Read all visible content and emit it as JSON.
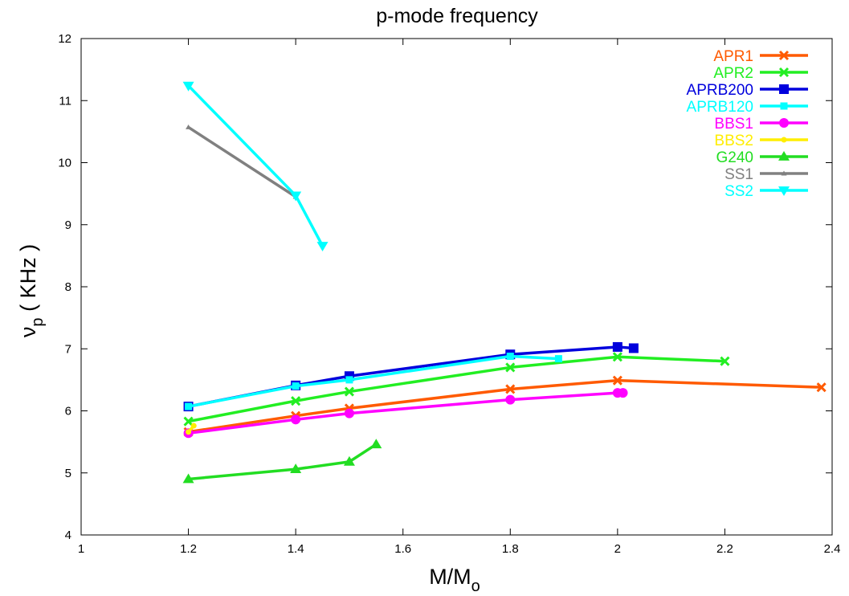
{
  "chart_data": {
    "type": "line",
    "title": "p-mode frequency",
    "xlabel": {
      "main": "M/M",
      "sub": "o"
    },
    "ylabel": {
      "main": "ν",
      "sub": "p",
      "rest": " ( KHz )"
    },
    "xlim": [
      1.0,
      2.4
    ],
    "ylim": [
      4,
      12
    ],
    "xticks": [
      1,
      1.2,
      1.4,
      1.6,
      1.8,
      2,
      2.2,
      2.4
    ],
    "yticks": [
      4,
      5,
      6,
      7,
      8,
      9,
      10,
      11,
      12
    ],
    "grid": false,
    "legend_position": "top-right",
    "series": [
      {
        "name": "APR1",
        "color": "#ff5a00",
        "marker": "x",
        "x": [
          1.2,
          1.4,
          1.5,
          1.8,
          2.0,
          2.38
        ],
        "y": [
          5.66,
          5.92,
          6.04,
          6.35,
          6.49,
          6.38
        ]
      },
      {
        "name": "APR2",
        "color": "#22ee22",
        "marker": "x",
        "x": [
          1.2,
          1.4,
          1.5,
          1.8,
          2.0,
          2.2
        ],
        "y": [
          5.83,
          6.16,
          6.31,
          6.7,
          6.87,
          6.8
        ]
      },
      {
        "name": "APRB200",
        "color": "#0000dd",
        "marker": "square",
        "x": [
          1.2,
          1.4,
          1.5,
          1.8,
          2.0,
          2.03
        ],
        "y": [
          6.07,
          6.41,
          6.56,
          6.91,
          7.03,
          7.01
        ]
      },
      {
        "name": "APRB120",
        "color": "#00ffff",
        "marker": "small-square",
        "x": [
          1.2,
          1.4,
          1.5,
          1.8,
          1.89
        ],
        "y": [
          6.07,
          6.4,
          6.5,
          6.88,
          6.84
        ]
      },
      {
        "name": "BBS1",
        "color": "#ff00ff",
        "marker": "circle",
        "x": [
          1.2,
          1.4,
          1.5,
          1.8,
          2.0,
          2.01
        ],
        "y": [
          5.64,
          5.86,
          5.96,
          6.18,
          6.29,
          6.29
        ]
      },
      {
        "name": "BBS2",
        "color": "#ffee00",
        "marker": "dot",
        "x": [
          1.2,
          1.21
        ],
        "y": [
          5.66,
          5.76
        ]
      },
      {
        "name": "G240",
        "color": "#22dd22",
        "marker": "triangle-up",
        "x": [
          1.2,
          1.4,
          1.5,
          1.55
        ],
        "y": [
          4.9,
          5.06,
          5.18,
          5.46
        ]
      },
      {
        "name": "SS1",
        "color": "#808080",
        "marker": "tri-small",
        "x": [
          1.2,
          1.4
        ],
        "y": [
          10.57,
          9.45
        ]
      },
      {
        "name": "SS2",
        "color": "#00ffff",
        "marker": "triangle-down",
        "x": [
          1.2,
          1.4,
          1.45
        ],
        "y": [
          11.24,
          9.47,
          8.66
        ]
      }
    ]
  }
}
